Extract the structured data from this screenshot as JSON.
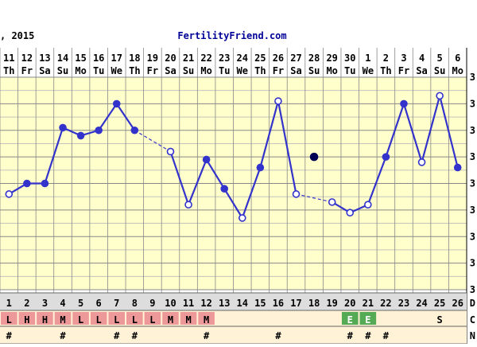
{
  "header": {
    "year_label": ", 2015",
    "site": "FertilityFriend.com"
  },
  "chart_data": {
    "type": "line",
    "title": "",
    "xlabel": "",
    "ylabel": "",
    "dates": [
      "11",
      "12",
      "13",
      "14",
      "15",
      "16",
      "17",
      "18",
      "19",
      "20",
      "21",
      "22",
      "23",
      "24",
      "25",
      "26",
      "27",
      "28",
      "29",
      "30",
      "1",
      "2",
      "3",
      "4",
      "5",
      "6"
    ],
    "weekdays": [
      "Th",
      "Fr",
      "Sa",
      "Su",
      "Mo",
      "Tu",
      "We",
      "Th",
      "Fr",
      "Sa",
      "Su",
      "Mo",
      "Tu",
      "We",
      "Th",
      "Fr",
      "Sa",
      "Su",
      "Mo",
      "Tu",
      "We",
      "Th",
      "Fr",
      "Sa",
      "Su",
      "Mo"
    ],
    "cycle_days": [
      "1",
      "2",
      "3",
      "4",
      "5",
      "6",
      "7",
      "8",
      "9",
      "10",
      "11",
      "12",
      "13",
      "14",
      "15",
      "16",
      "17",
      "18",
      "19",
      "20",
      "21",
      "22",
      "23",
      "24",
      "25",
      "26"
    ],
    "series": [
      {
        "values": [
          3.6,
          4.0,
          4.0,
          6.1,
          5.8,
          6.0,
          7.0,
          6.0,
          null,
          5.2,
          3.2,
          4.9,
          3.8,
          2.7,
          4.6,
          7.1,
          3.6,
          5.0,
          3.3,
          2.9,
          3.2,
          5.0,
          7.0,
          4.8,
          7.3,
          4.6
        ],
        "open_markers": [
          0,
          9,
          10,
          13,
          15,
          16,
          18,
          19,
          20,
          23,
          24
        ],
        "outlier_points": [
          17
        ],
        "dashed_segments": [
          [
            7,
            9
          ],
          [
            16,
            18
          ]
        ]
      }
    ],
    "ylim": [
      0,
      8
    ],
    "grid": true,
    "right_axis_label": "3",
    "row_labels": {
      "days": "D",
      "cervix": "C",
      "notes": "N"
    },
    "cervical_fluid": [
      "L",
      "H",
      "H",
      "M",
      "L",
      "L",
      "L",
      "L",
      "L",
      "M",
      "M",
      "M",
      "",
      "",
      "",
      "",
      "",
      "",
      "",
      "E",
      "E",
      "",
      "",
      "",
      "S",
      ""
    ],
    "notes_marks": [
      "#",
      "",
      "",
      "#",
      "",
      "",
      "#",
      "#",
      "",
      "",
      "",
      "#",
      "",
      "",
      "",
      "#",
      "",
      "",
      "",
      "#",
      "#",
      "#",
      "",
      "",
      "",
      ""
    ],
    "colors": {
      "line": "#3333cc",
      "grid": "#999999",
      "axis": "#000000",
      "menses_fill": "#ee9999",
      "fertile_fill": "#55aa55",
      "header_bg": "#ffffcc",
      "row_bg": "#fff2d6",
      "site_link": "#000099"
    }
  }
}
